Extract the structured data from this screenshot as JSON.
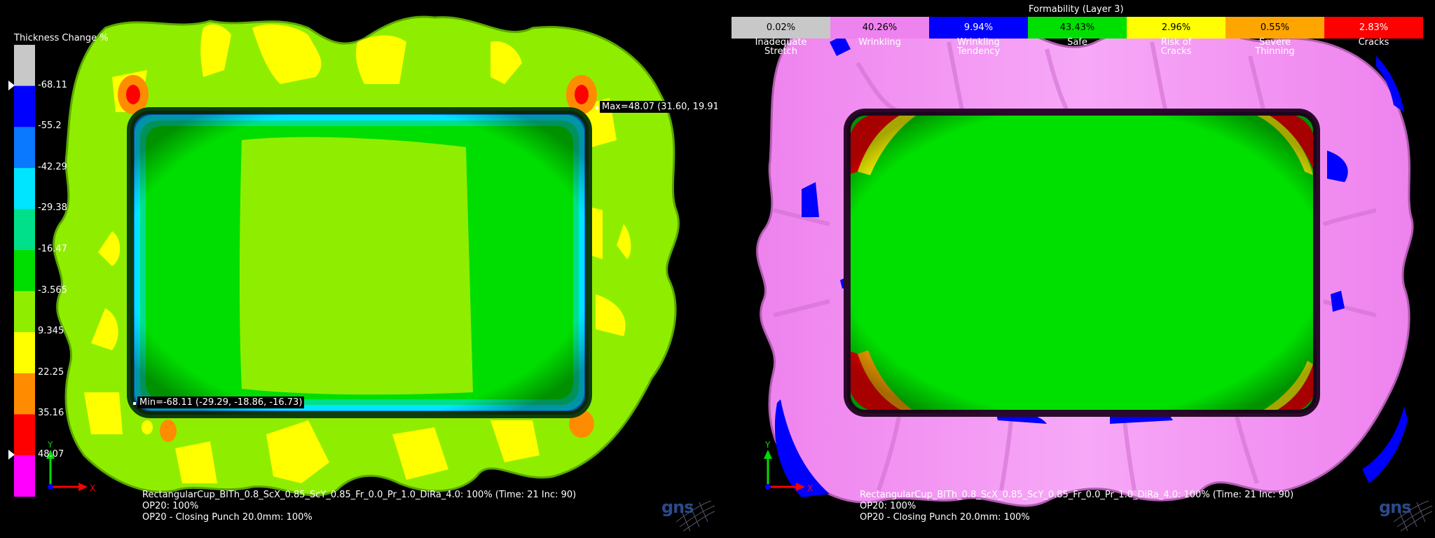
{
  "left_view": {
    "legend_title": "Thickness Change %",
    "scale_labels": [
      "-68.11",
      "-55.2",
      "-42.29",
      "-29.38",
      "-16.47",
      "-3.565",
      "9.345",
      "22.25",
      "35.16",
      "48.07"
    ],
    "scale_colors": [
      "#c8c8c8",
      "#0000ff",
      "#0a78ff",
      "#00e5ff",
      "#00e08a",
      "#00dd00",
      "#8fee00",
      "#ffff00",
      "#ff8c00",
      "#ff0000",
      "#ff00ff"
    ],
    "max_tag": "Max=48.07 (31.60, 19.91,",
    "min_tag": "Min=-68.11 (-29.29, -18.86, -16.73)",
    "info_lines": [
      "RectangularCup_BlTh_0.8_ScX_0.85_ScY_0.85_Fr_0.0_Pr_1.0_DiRa_4.0: 100% (Time: 21 Inc: 90)",
      "OP20: 100%",
      "OP20 - Closing Punch  20.0mm: 100%"
    ],
    "axis_y": "Y",
    "axis_x": "X",
    "logo_text": "gns"
  },
  "right_view": {
    "legend_title": "Formability (Layer 3)",
    "categories": [
      {
        "percent": "0.02%",
        "name_line1": "Inadequate",
        "name_line2": "Stretch",
        "color": "#c8c8c8"
      },
      {
        "percent": "40.26%",
        "name_line1": "Wrinkling",
        "name_line2": "",
        "color": "#ee82ee"
      },
      {
        "percent": "9.94%",
        "name_line1": "Wrinkling",
        "name_line2": "Tendency",
        "color": "#0000ff"
      },
      {
        "percent": "43.43%",
        "name_line1": "Safe",
        "name_line2": "",
        "color": "#00e000"
      },
      {
        "percent": "2.96%",
        "name_line1": "Risk of",
        "name_line2": "Cracks",
        "color": "#ffff00"
      },
      {
        "percent": "0.55%",
        "name_line1": "Severe",
        "name_line2": "Thinning",
        "color": "#ffa500"
      },
      {
        "percent": "2.83%",
        "name_line1": "Cracks",
        "name_line2": "",
        "color": "#ff0000"
      }
    ],
    "info_lines": [
      "RectangularCup_BlTh_0.8_ScX_0.85_ScY_0.85_Fr_0.0_Pr_1.0_DiRa_4.0: 100% (Time: 21 Inc: 90)",
      "OP20: 100%",
      "OP20 - Closing Punch  20.0mm: 100%"
    ],
    "axis_y": "Y",
    "axis_x": "X",
    "logo_text": "gns"
  }
}
